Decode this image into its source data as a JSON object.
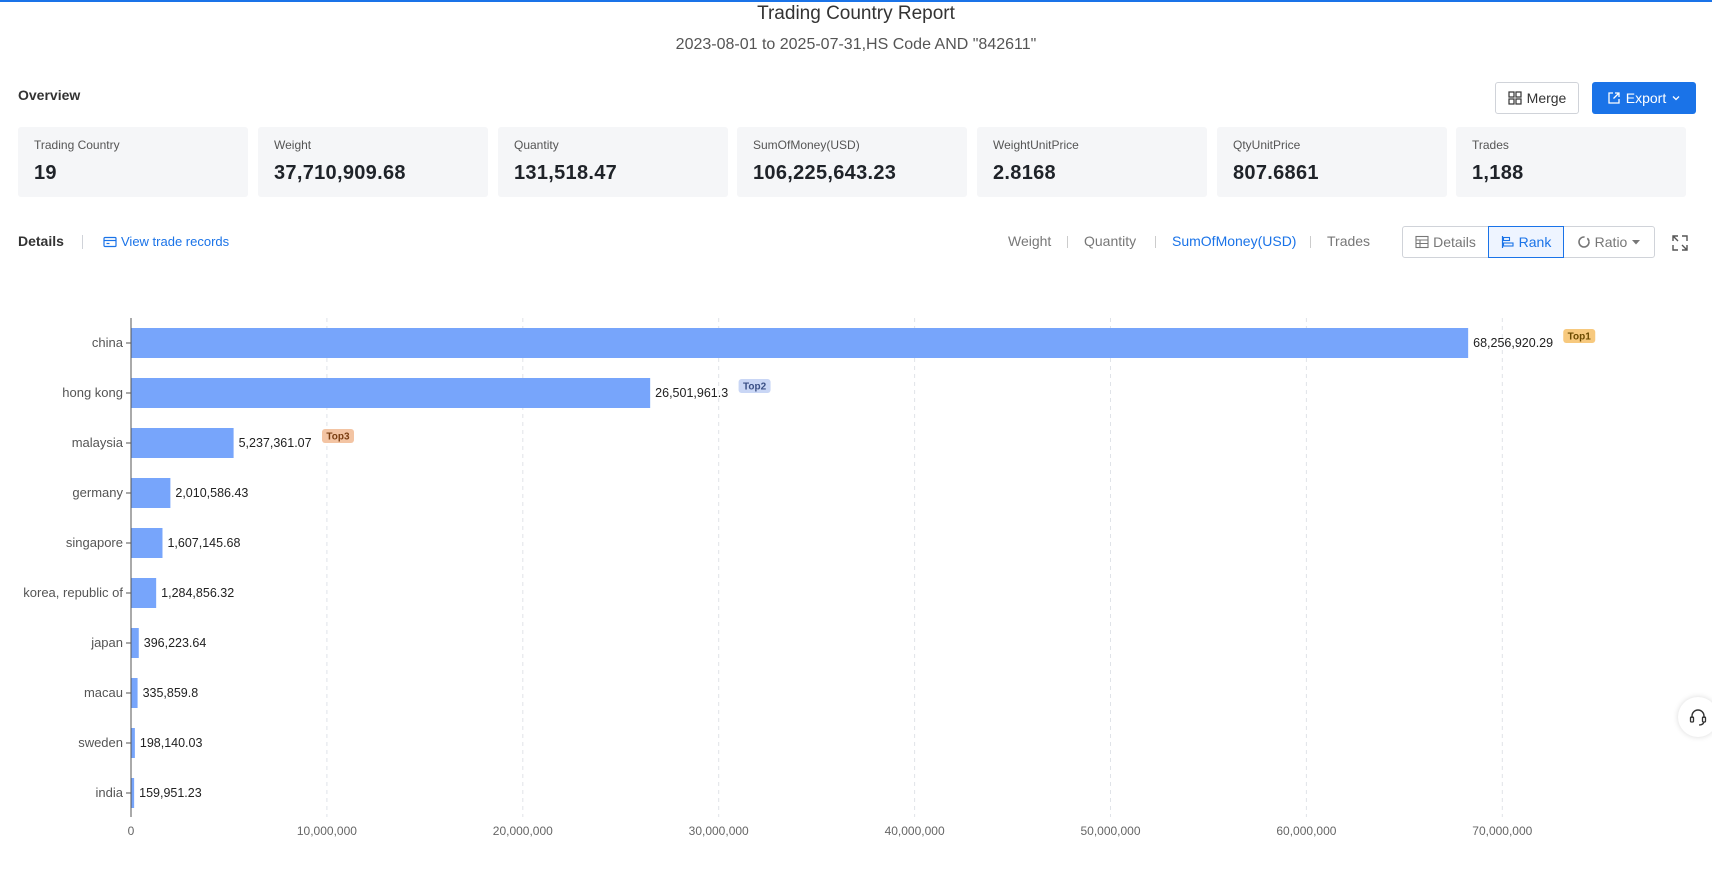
{
  "header": {
    "title": "Trading Country Report",
    "subtitle": "2023-08-01 to 2025-07-31,HS Code AND \"842611\""
  },
  "overview": {
    "label": "Overview",
    "merge_label": "Merge",
    "export_label": "Export",
    "cards": [
      {
        "label": "Trading Country",
        "value": "19"
      },
      {
        "label": "Weight",
        "value": "37,710,909.68"
      },
      {
        "label": "Quantity",
        "value": "131,518.47"
      },
      {
        "label": "SumOfMoney(USD)",
        "value": "106,225,643.23"
      },
      {
        "label": "WeightUnitPrice",
        "value": "2.8168"
      },
      {
        "label": "QtyUnitPrice",
        "value": "807.6861"
      },
      {
        "label": "Trades",
        "value": "1,188"
      }
    ]
  },
  "details": {
    "label": "Details",
    "view_records_label": "View trade records",
    "metric_tabs": [
      "Weight",
      "Quantity",
      "SumOfMoney(USD)",
      "Trades"
    ],
    "active_metric": "SumOfMoney(USD)",
    "view_buttons": {
      "details": "Details",
      "rank": "Rank",
      "ratio": "Ratio"
    },
    "active_view": "Rank"
  },
  "colors": {
    "accent": "#1a73e8",
    "bar": "#77a5fb",
    "top1_badge": "#f7c97e",
    "top2_badge": "#c9d6f5",
    "top3_badge": "#f3c4a3"
  },
  "chart_data": {
    "type": "bar",
    "orientation": "horizontal",
    "categories": [
      "china",
      "hong kong",
      "malaysia",
      "germany",
      "singapore",
      "korea, republic of",
      "japan",
      "macau",
      "sweden",
      "india"
    ],
    "values": [
      68256920.29,
      26501961.3,
      5237361.07,
      2010586.43,
      1607145.68,
      1284856.32,
      396223.64,
      335859.8,
      198140.03,
      159951.23
    ],
    "value_labels": [
      "68,256,920.29",
      "26,501,961.3",
      "5,237,361.07",
      "2,010,586.43",
      "1,607,145.68",
      "1,284,856.32",
      "396,223.64",
      "335,859.8",
      "198,140.03",
      "159,951.23"
    ],
    "badges": [
      "Top1",
      "Top2",
      "Top3"
    ],
    "x_ticks": [
      "0",
      "10,000,000",
      "20,000,000",
      "30,000,000",
      "40,000,000",
      "50,000,000",
      "60,000,000",
      "70,000,000"
    ],
    "xlim": [
      0,
      78000000
    ],
    "grid": true
  }
}
